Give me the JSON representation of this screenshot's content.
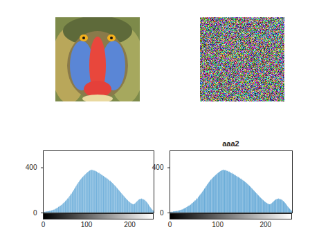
{
  "chart_data": [
    {
      "type": "histogram",
      "bins": [
        0,
        1,
        2,
        3,
        4,
        5,
        6,
        7,
        8,
        9,
        10,
        11,
        12,
        13,
        14,
        15,
        16,
        17,
        18,
        19,
        20,
        21,
        22,
        23,
        24,
        25,
        26,
        27,
        28,
        29,
        30,
        31,
        32,
        33,
        34,
        35,
        36,
        37,
        38,
        39,
        40,
        41,
        42,
        43,
        44,
        45,
        46,
        47,
        48,
        49,
        50,
        51,
        52,
        53,
        54,
        55,
        56,
        57,
        58,
        59,
        60,
        61,
        62,
        63,
        64,
        65,
        66,
        67,
        68,
        69,
        70,
        71,
        72,
        73,
        74,
        75,
        76,
        77,
        78,
        79,
        80,
        81,
        82,
        83,
        84,
        85,
        86,
        87,
        88,
        89,
        90,
        91,
        92,
        93,
        94,
        95,
        96,
        97,
        98,
        99,
        100,
        101,
        102,
        103,
        104,
        105,
        106,
        107,
        108,
        109,
        110,
        111,
        112,
        113,
        114,
        115,
        116,
        117,
        118,
        119,
        120,
        121,
        122,
        123,
        124,
        125,
        126,
        127,
        128,
        129,
        130,
        131,
        132,
        133,
        134,
        135,
        136,
        137,
        138,
        139,
        140,
        141,
        142,
        143,
        144,
        145,
        146,
        147,
        148,
        149,
        150,
        151,
        152,
        153,
        154,
        155,
        156,
        157,
        158,
        159,
        160,
        161,
        162,
        163,
        164,
        165,
        166,
        167,
        168,
        169,
        170,
        171,
        172,
        173,
        174,
        175,
        176,
        177,
        178,
        179,
        180,
        181,
        182,
        183,
        184,
        185,
        186,
        187,
        188,
        189,
        190,
        191,
        192,
        193,
        194,
        195,
        196,
        197,
        198,
        199,
        200,
        201,
        202,
        203,
        204,
        205,
        206,
        207,
        208,
        209,
        210,
        211,
        212,
        213,
        214,
        215,
        216,
        217,
        218,
        219,
        220,
        221,
        222,
        223,
        224,
        225,
        226,
        227,
        228,
        229,
        230,
        231,
        232,
        233,
        234,
        235,
        236,
        237,
        238,
        239,
        240,
        241,
        242,
        243,
        244,
        245,
        246,
        247,
        248,
        249,
        250,
        251,
        252,
        253,
        254,
        255,
        256
      ],
      "values": [
        5,
        6,
        8,
        7,
        9,
        10,
        8,
        11,
        12,
        10,
        13,
        12,
        14,
        13,
        15,
        16,
        15,
        18,
        17,
        20,
        19,
        22,
        24,
        23,
        26,
        28,
        27,
        31,
        33,
        36,
        35,
        40,
        42,
        45,
        44,
        50,
        53,
        52,
        58,
        60,
        63,
        62,
        68,
        72,
        70,
        78,
        82,
        85,
        88,
        95,
        92,
        100,
        106,
        110,
        108,
        117,
        122,
        128,
        125,
        135,
        140,
        146,
        150,
        158,
        162,
        170,
        168,
        178,
        185,
        190,
        196,
        202,
        210,
        215,
        220,
        228,
        234,
        240,
        248,
        252,
        258,
        265,
        270,
        276,
        280,
        288,
        292,
        296,
        300,
        306,
        310,
        315,
        318,
        322,
        326,
        330,
        334,
        338,
        342,
        345,
        350,
        352,
        356,
        360,
        362,
        365,
        368,
        370,
        374,
        376,
        378,
        380,
        376,
        382,
        378,
        374,
        380,
        372,
        376,
        370,
        368,
        372,
        366,
        362,
        366,
        360,
        356,
        358,
        352,
        350,
        354,
        346,
        342,
        344,
        338,
        336,
        332,
        334,
        328,
        324,
        326,
        320,
        316,
        318,
        312,
        308,
        310,
        304,
        300,
        302,
        296,
        292,
        290,
        286,
        282,
        284,
        278,
        274,
        270,
        268,
        264,
        260,
        256,
        252,
        248,
        244,
        240,
        236,
        232,
        228,
        222,
        218,
        214,
        208,
        204,
        200,
        196,
        190,
        186,
        182,
        178,
        172,
        168,
        164,
        158,
        154,
        150,
        146,
        140,
        136,
        132,
        128,
        124,
        120,
        116,
        112,
        108,
        104,
        100,
        96,
        94,
        90,
        88,
        85,
        82,
        80,
        78,
        76,
        75,
        74,
        76,
        78,
        80,
        84,
        88,
        92,
        96,
        100,
        104,
        108,
        112,
        115,
        118,
        120,
        122,
        124,
        120,
        126,
        122,
        118,
        124,
        120,
        116,
        118,
        112,
        114,
        108,
        104,
        100,
        96,
        92,
        86,
        82,
        76,
        70,
        64,
        58,
        52,
        48,
        42,
        38,
        32,
        28,
        24,
        20,
        16
      ],
      "color": "#0072bd",
      "xlim": [
        0,
        256
      ],
      "xticks": [
        0,
        100,
        200
      ],
      "ylim": [
        0,
        550
      ],
      "yticks": [
        0,
        400
      ]
    },
    {
      "type": "histogram",
      "title": "aaa2",
      "bins": [
        0,
        1,
        2,
        3,
        4,
        5,
        6,
        7,
        8,
        9,
        10,
        11,
        12,
        13,
        14,
        15,
        16,
        17,
        18,
        19,
        20,
        21,
        22,
        23,
        24,
        25,
        26,
        27,
        28,
        29,
        30,
        31,
        32,
        33,
        34,
        35,
        36,
        37,
        38,
        39,
        40,
        41,
        42,
        43,
        44,
        45,
        46,
        47,
        48,
        49,
        50,
        51,
        52,
        53,
        54,
        55,
        56,
        57,
        58,
        59,
        60,
        61,
        62,
        63,
        64,
        65,
        66,
        67,
        68,
        69,
        70,
        71,
        72,
        73,
        74,
        75,
        76,
        77,
        78,
        79,
        80,
        81,
        82,
        83,
        84,
        85,
        86,
        87,
        88,
        89,
        90,
        91,
        92,
        93,
        94,
        95,
        96,
        97,
        98,
        99,
        100,
        101,
        102,
        103,
        104,
        105,
        106,
        107,
        108,
        109,
        110,
        111,
        112,
        113,
        114,
        115,
        116,
        117,
        118,
        119,
        120,
        121,
        122,
        123,
        124,
        125,
        126,
        127,
        128,
        129,
        130,
        131,
        132,
        133,
        134,
        135,
        136,
        137,
        138,
        139,
        140,
        141,
        142,
        143,
        144,
        145,
        146,
        147,
        148,
        149,
        150,
        151,
        152,
        153,
        154,
        155,
        156,
        157,
        158,
        159,
        160,
        161,
        162,
        163,
        164,
        165,
        166,
        167,
        168,
        169,
        170,
        171,
        172,
        173,
        174,
        175,
        176,
        177,
        178,
        179,
        180,
        181,
        182,
        183,
        184,
        185,
        186,
        187,
        188,
        189,
        190,
        191,
        192,
        193,
        194,
        195,
        196,
        197,
        198,
        199,
        200,
        201,
        202,
        203,
        204,
        205,
        206,
        207,
        208,
        209,
        210,
        211,
        212,
        213,
        214,
        215,
        216,
        217,
        218,
        219,
        220,
        221,
        222,
        223,
        224,
        225,
        226,
        227,
        228,
        229,
        230,
        231,
        232,
        233,
        234,
        235,
        236,
        237,
        238,
        239,
        240,
        241,
        242,
        243,
        244,
        245,
        246,
        247,
        248,
        249,
        250,
        251,
        252,
        253,
        254,
        255,
        256
      ],
      "values": [
        5,
        6,
        8,
        7,
        9,
        10,
        8,
        11,
        12,
        10,
        13,
        12,
        14,
        13,
        15,
        16,
        15,
        18,
        17,
        20,
        19,
        22,
        24,
        23,
        26,
        28,
        27,
        31,
        33,
        36,
        35,
        40,
        42,
        45,
        44,
        50,
        53,
        52,
        58,
        60,
        63,
        62,
        68,
        72,
        70,
        78,
        82,
        85,
        88,
        95,
        92,
        100,
        106,
        110,
        108,
        117,
        122,
        128,
        125,
        135,
        140,
        146,
        150,
        158,
        162,
        170,
        168,
        178,
        185,
        190,
        196,
        202,
        210,
        215,
        220,
        228,
        234,
        240,
        248,
        252,
        258,
        265,
        270,
        276,
        280,
        288,
        292,
        296,
        300,
        306,
        310,
        315,
        318,
        322,
        326,
        330,
        334,
        338,
        342,
        345,
        350,
        352,
        356,
        360,
        362,
        365,
        368,
        370,
        374,
        376,
        378,
        380,
        376,
        382,
        378,
        374,
        380,
        372,
        376,
        370,
        368,
        372,
        366,
        362,
        366,
        360,
        356,
        358,
        352,
        350,
        354,
        346,
        342,
        344,
        338,
        336,
        332,
        334,
        328,
        324,
        326,
        320,
        316,
        318,
        312,
        308,
        310,
        304,
        300,
        302,
        296,
        292,
        290,
        286,
        282,
        284,
        278,
        274,
        270,
        268,
        264,
        260,
        256,
        252,
        248,
        244,
        240,
        236,
        232,
        228,
        222,
        218,
        214,
        208,
        204,
        200,
        196,
        190,
        186,
        182,
        178,
        172,
        168,
        164,
        158,
        154,
        150,
        146,
        140,
        136,
        132,
        128,
        124,
        120,
        116,
        112,
        108,
        104,
        100,
        96,
        94,
        90,
        88,
        85,
        82,
        80,
        78,
        76,
        75,
        74,
        76,
        78,
        80,
        84,
        88,
        92,
        96,
        100,
        104,
        108,
        112,
        115,
        118,
        120,
        122,
        124,
        120,
        126,
        122,
        118,
        124,
        120,
        116,
        118,
        112,
        114,
        108,
        104,
        100,
        96,
        92,
        86,
        82,
        76,
        70,
        64,
        58,
        52,
        48,
        42,
        38,
        32,
        28,
        24,
        20,
        16
      ],
      "color": "#0072bd",
      "xlim": [
        0,
        256
      ],
      "xticks": [
        0,
        100,
        200
      ],
      "ylim": [
        0,
        550
      ],
      "yticks": [
        0,
        400
      ]
    }
  ]
}
